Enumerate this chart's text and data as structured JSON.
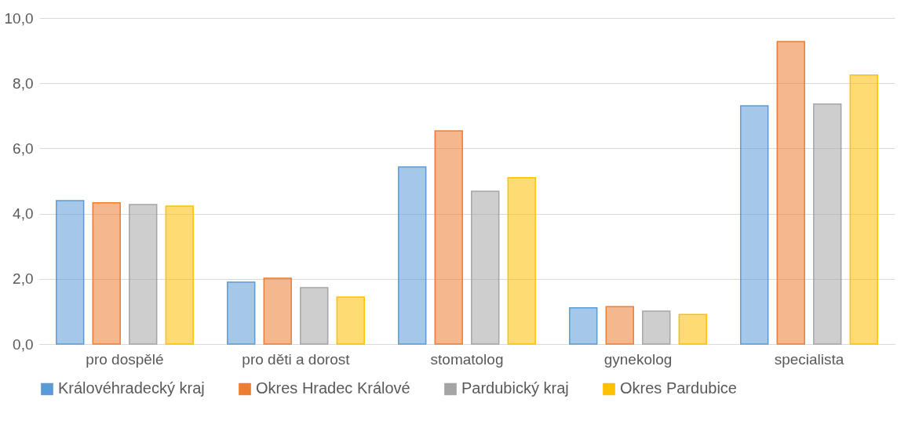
{
  "chart_data": {
    "type": "bar",
    "categories": [
      "pro dospělé",
      "pro děti a dorost",
      "stomatolog",
      "gynekolog",
      "specialista"
    ],
    "series": [
      {
        "name": "Královéhradecký kraj",
        "color": "#5b9bd5",
        "values": [
          4.4,
          1.9,
          5.43,
          1.11,
          7.31
        ]
      },
      {
        "name": "Okres Hradec Králové",
        "color": "#ed7d31",
        "values": [
          4.33,
          2.02,
          6.54,
          1.15,
          9.28
        ]
      },
      {
        "name": "Pardubický kraj",
        "color": "#a5a5a5",
        "values": [
          4.28,
          1.73,
          4.69,
          1.01,
          7.36
        ]
      },
      {
        "name": "Okres Pardubice",
        "color": "#ffc000",
        "values": [
          4.23,
          1.44,
          5.1,
          0.91,
          8.25
        ]
      }
    ],
    "ylim": [
      0,
      10
    ],
    "yticks": [
      {
        "value": 0,
        "label": "0,0"
      },
      {
        "value": 2,
        "label": "2,0"
      },
      {
        "value": 4,
        "label": "4,0"
      },
      {
        "value": 6,
        "label": "6,0"
      },
      {
        "value": 8,
        "label": "8,0"
      },
      {
        "value": 10,
        "label": "10,0"
      }
    ],
    "grid": "y",
    "legend": "bottom"
  }
}
